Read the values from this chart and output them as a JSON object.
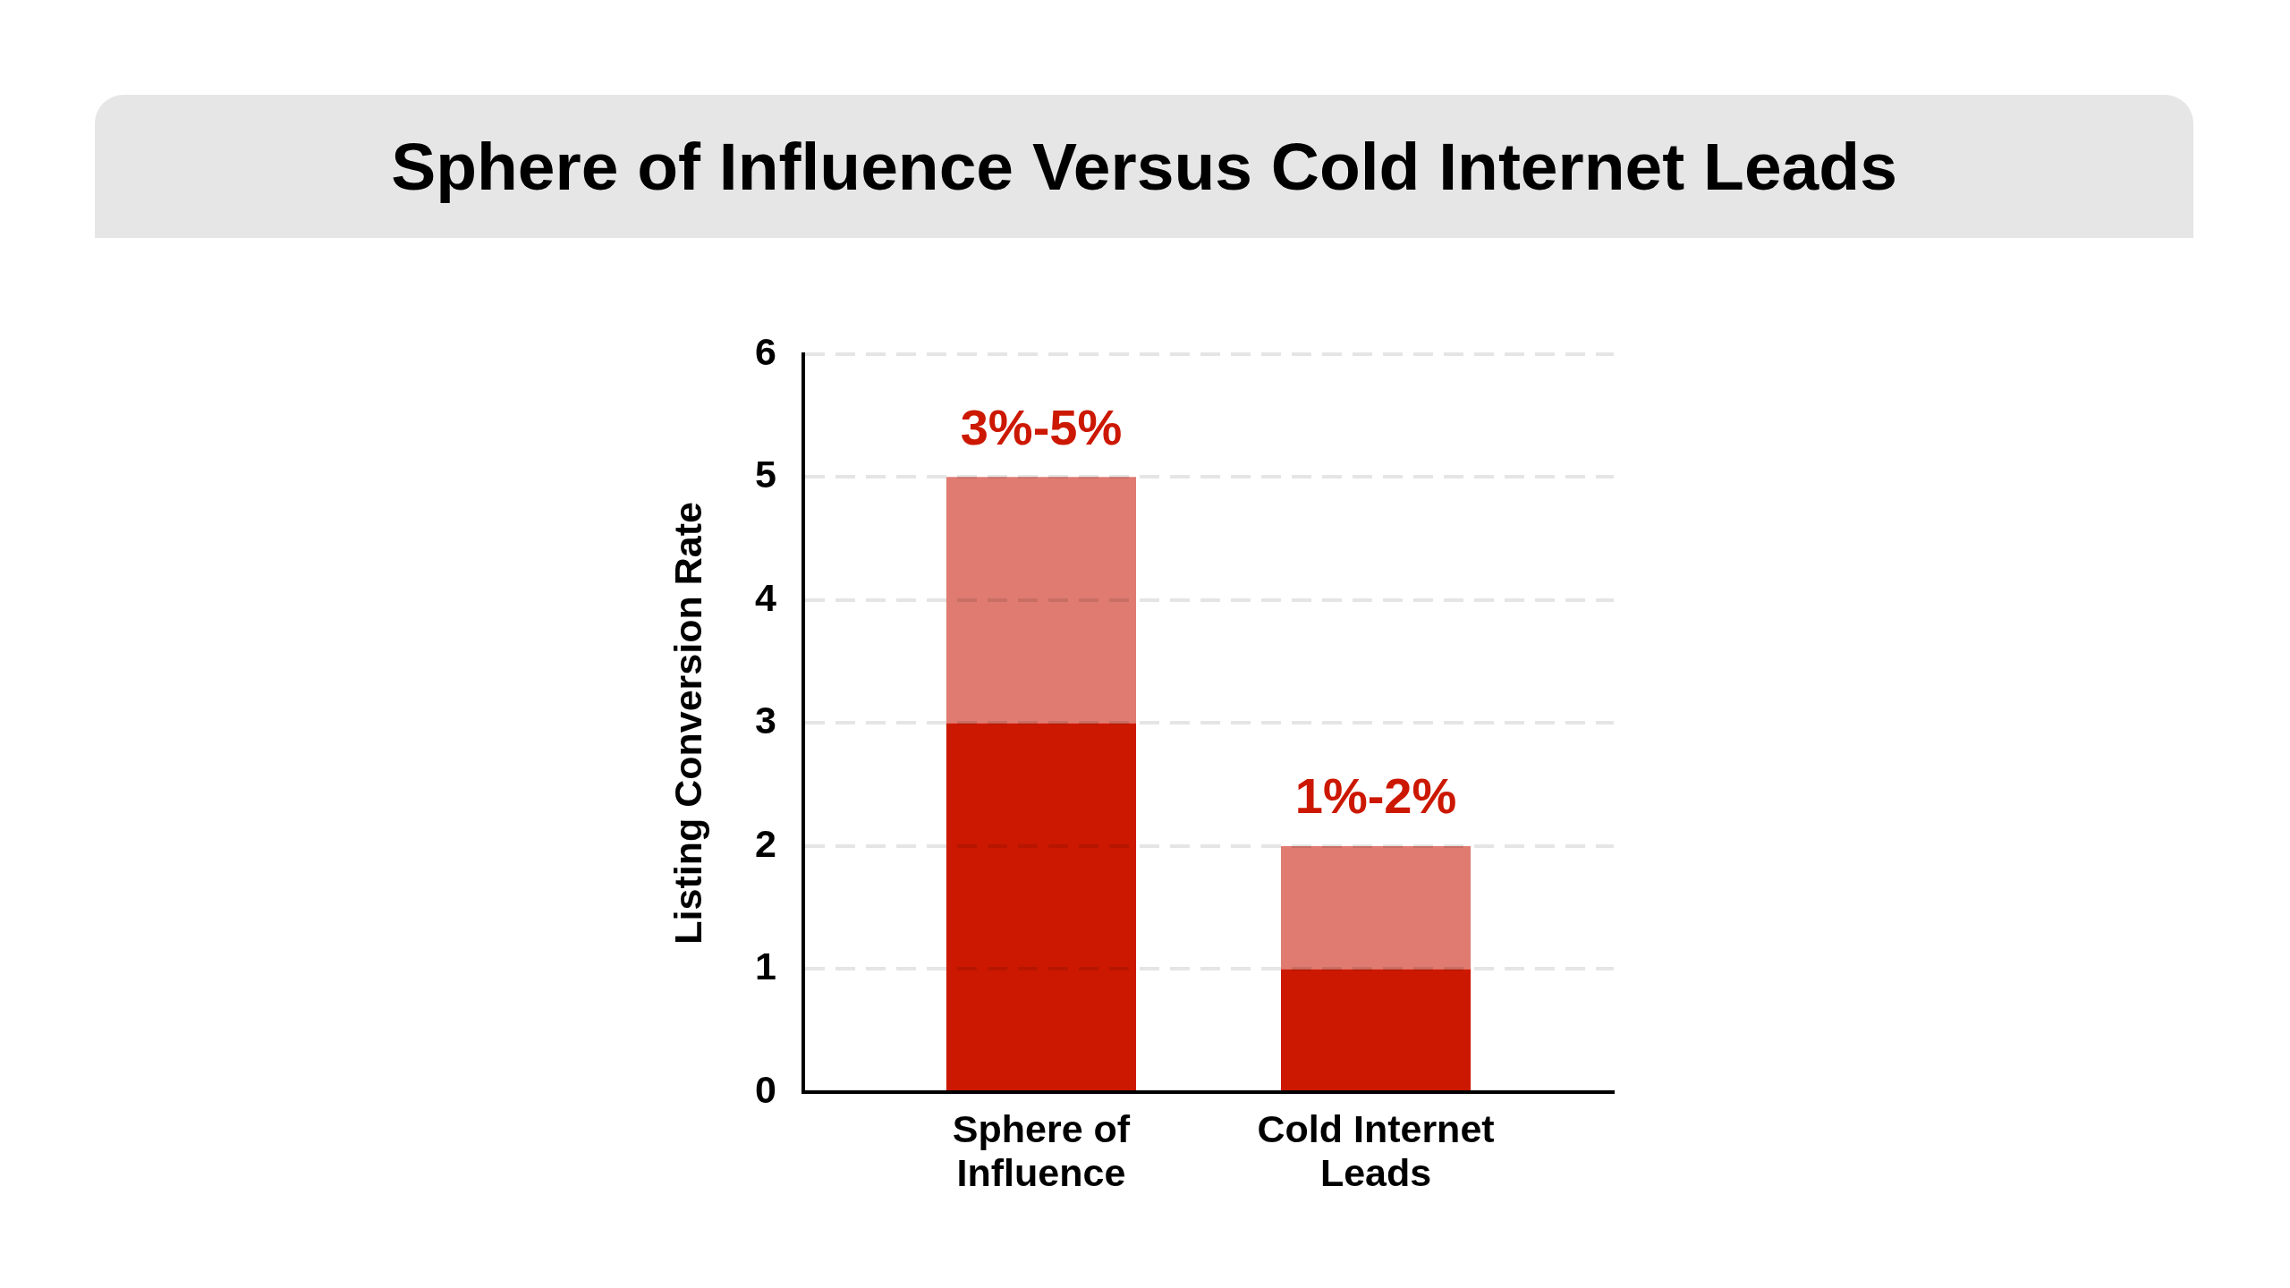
{
  "chart_data": {
    "type": "bar",
    "title": "Sphere of Influence Versus Cold Internet Leads",
    "ylabel": "Listing Conversion Rate",
    "categories": [
      "Sphere of Influence",
      "Cold Internet Leads"
    ],
    "stacked": true,
    "series": [
      {
        "color": "#cc1800",
        "values": [
          3,
          1
        ]
      },
      {
        "color": "#e07b71",
        "values": [
          2,
          1
        ]
      }
    ],
    "ylim": [
      0,
      6
    ],
    "yticks": [
      0,
      1,
      2,
      3,
      4,
      5,
      6
    ],
    "grid": "y",
    "annotations": [
      {
        "text": "3%-5%",
        "x": "Sphere of Influence",
        "y": 5
      },
      {
        "text": "1%-2%",
        "x": "Cold Internet Leads",
        "y": 2
      }
    ]
  }
}
